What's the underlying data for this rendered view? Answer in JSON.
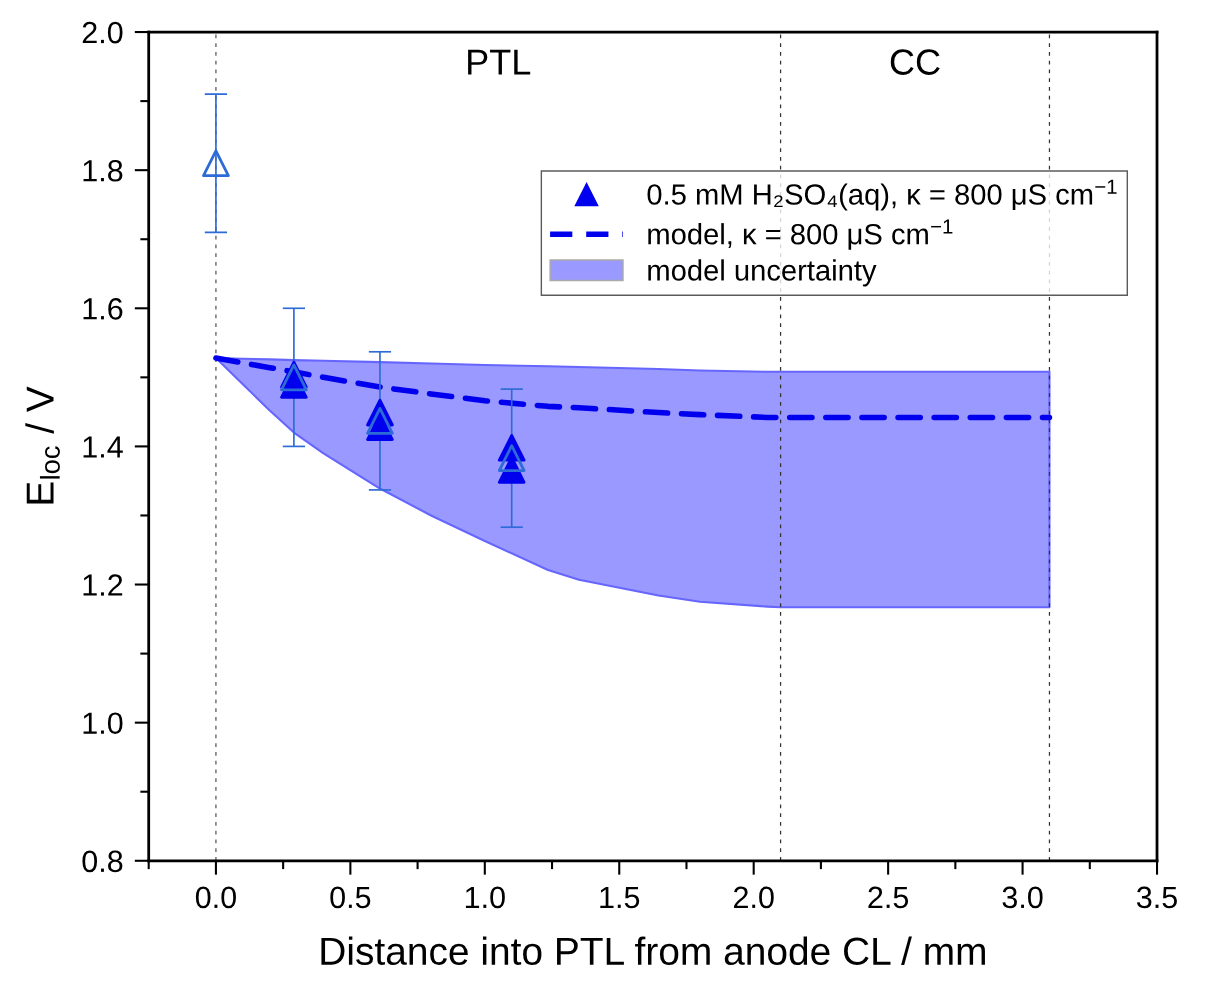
{
  "chart_data": {
    "type": "scatter",
    "xlabel": "Distance into PTL from anode CL / mm",
    "ylabel": "E$_{loc}$ / V",
    "xlim": [
      -0.25,
      3.5
    ],
    "xticks": [
      {
        "value": 0,
        "label": "0.0"
      },
      0.5,
      {
        "value": 1,
        "label": "1.0"
      },
      1.5,
      {
        "value": 2,
        "label": "2.0"
      },
      2.5,
      {
        "value": 3,
        "label": "3.0"
      },
      3.5
    ],
    "ylim": [
      0.8,
      2.0
    ],
    "yticks": [
      0.8,
      {
        "value": 1,
        "label": "1.0"
      },
      1.2,
      1.4,
      1.6,
      1.8,
      {
        "value": 2,
        "label": "2.0"
      }
    ],
    "legend": "top right",
    "series": [
      {
        "type": "line",
        "name": "model, κ = 800 μS cm$^{−1}$",
        "color": "#0000ee",
        "line_style": "dashed",
        "marker": "none",
        "x": [
          0,
          0.1,
          0.2,
          0.29,
          0.4,
          0.61,
          0.8,
          1.0,
          1.235,
          1.35,
          1.646,
          1.8,
          2.05,
          2.1,
          3.1
        ],
        "values": [
          1.528,
          1.521,
          1.514,
          1.508,
          1.5,
          1.486,
          1.476,
          1.466,
          1.458,
          1.456,
          1.449,
          1.446,
          1.442,
          1.442,
          1.442
        ],
        "lower": [
          1.528,
          1.49,
          1.452,
          1.42,
          1.39,
          1.339,
          1.3,
          1.263,
          1.221,
          1.207,
          1.184,
          1.175,
          1.168,
          1.167,
          1.167
        ],
        "upper": [
          1.528,
          1.527,
          1.526,
          1.525,
          1.524,
          1.522,
          1.52,
          1.518,
          1.516,
          1.515,
          1.512,
          1.51,
          1.508,
          1.508,
          1.508
        ]
      },
      {
        "type": "scatter",
        "name": "0.5 mM H₂SO₄(aq), κ = 800 μS cm$^{−1}$",
        "color": "#0000ee",
        "marker": "triangle",
        "x": [
          0.29,
          0.29,
          0.61,
          0.61,
          1.1,
          1.1
        ],
        "values": [
          1.504,
          1.489,
          1.449,
          1.428,
          1.398,
          1.366
        ]
      },
      {
        "color": "#2d6bd6",
        "marker": "triangle",
        "x": [
          0,
          0.29,
          0.61,
          1.1
        ],
        "values": [
          1.81,
          1.5,
          1.437,
          1.383
        ],
        "errors": [
          0.1,
          0.1,
          0.1,
          0.1
        ]
      }
    ],
    "ref_lines": [
      {
        "axis": "x",
        "value": 0,
        "color": "#555555",
        "line_style": "dashed"
      },
      {
        "axis": "x",
        "value": 2.1,
        "color": "#333333",
        "line_style": "dashed"
      },
      {
        "axis": "x",
        "value": 3.1,
        "color": "#333333",
        "line_style": "dashed"
      }
    ],
    "annotations": [
      "PTL",
      "CC",
      "model uncertainty"
    ]
  }
}
